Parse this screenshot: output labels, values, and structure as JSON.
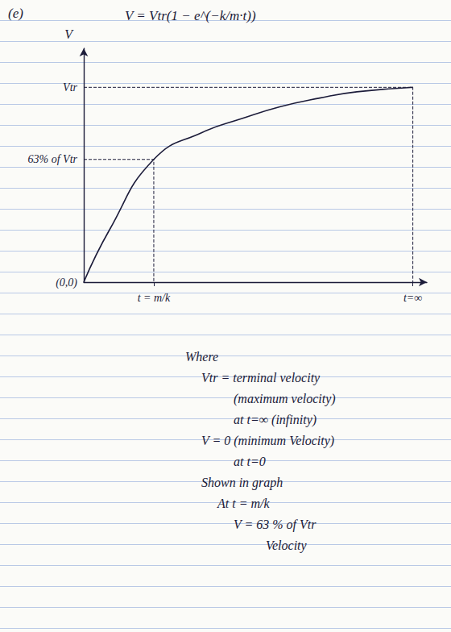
{
  "chart_data": {
    "type": "line",
    "title": "V = Vtr(1 − e^(−k/m·t))",
    "annotation": "(e)",
    "y_label": "V",
    "x": [
      0,
      0.37,
      1,
      1.7,
      2.26,
      2.8,
      3.37,
      3.9,
      4.7
    ],
    "values": [
      0,
      0.27,
      0.63,
      0.77,
      0.84,
      0.9,
      0.945,
      0.977,
      1
    ],
    "color": "#1c1c3a",
    "line_style": "solid",
    "xlim": [
      0,
      4.9
    ],
    "ylim": [
      0,
      1.2
    ],
    "xticks": [
      {
        "value": 1,
        "label": "t = m/k"
      },
      {
        "value": 4.7,
        "label": "t=∞"
      }
    ],
    "yticks": [
      {
        "value": 0,
        "label": "(0,0)"
      },
      {
        "value": 0.63,
        "label": "63% of Vtr"
      },
      {
        "value": 1,
        "label": "Vtr"
      }
    ],
    "grid": false
  },
  "notes": [
    "Where",
    "Vtr = terminal velocity",
    "(maximum velocity)",
    "at t=∞ (infinity)",
    "V = 0  (minimum Velocity)",
    "at t=0",
    "Shown in graph",
    "At  t = m/k",
    "V = 63 % of Vtr",
    "Velocity"
  ]
}
